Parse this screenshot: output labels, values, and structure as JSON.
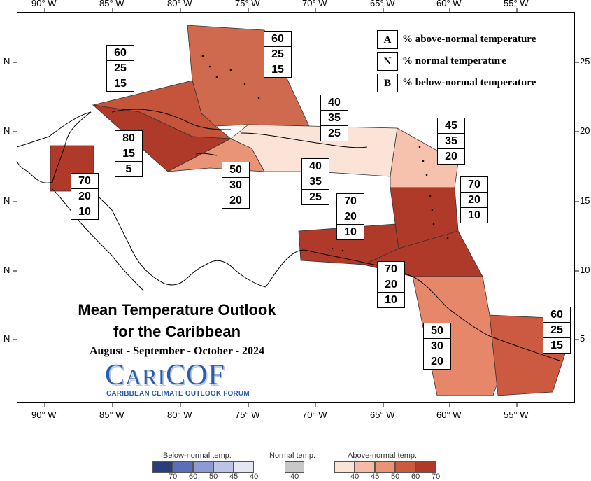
{
  "map": {
    "top_axis_labels": [
      "90° W",
      "85° W",
      "80° W",
      "75° W",
      "70° W",
      "65° W",
      "60° W",
      "55° W"
    ],
    "bottom_axis_labels": [
      "90° W",
      "85° W",
      "80° W",
      "75° W",
      "70° W",
      "65° W",
      "60° W",
      "55° W"
    ],
    "left_axis_labels": [
      "N",
      "N",
      "N",
      "N",
      "N"
    ],
    "right_axis_labels": [
      "25",
      "20",
      "15",
      "10",
      "5"
    ]
  },
  "legend": {
    "items": [
      {
        "letter": "A",
        "text": "% above-normal temperature"
      },
      {
        "letter": "N",
        "text": "% normal temperature"
      },
      {
        "letter": "B",
        "text": "% below-normal temperature"
      }
    ]
  },
  "regions": [
    {
      "id": "bahamas",
      "above": "60",
      "normal": "25",
      "below": "15",
      "color": "#d06a4e"
    },
    {
      "id": "cuba",
      "above": "60",
      "normal": "25",
      "below": "15",
      "color": "#c4553b"
    },
    {
      "id": "cayman-jamaica",
      "above": "80",
      "normal": "15",
      "below": "5",
      "color": "#b03a2a"
    },
    {
      "id": "jamaica-south",
      "above": "50",
      "normal": "30",
      "below": "20",
      "color": "#e99477"
    },
    {
      "id": "hispaniola",
      "above": "40",
      "normal": "35",
      "below": "25",
      "color": "#fbe3d8"
    },
    {
      "id": "turks-caicos",
      "above": "40",
      "normal": "35",
      "below": "25",
      "color": "#fbe3d8"
    },
    {
      "id": "leeward-islands",
      "above": "45",
      "normal": "35",
      "below": "20",
      "color": "#f6c2ad"
    },
    {
      "id": "belize",
      "above": "70",
      "normal": "20",
      "below": "10",
      "color": "#b03a2a"
    },
    {
      "id": "windward-islands",
      "above": "70",
      "normal": "20",
      "below": "10",
      "color": "#b03a2a"
    },
    {
      "id": "abc-islands",
      "above": "70",
      "normal": "20",
      "below": "10",
      "color": "#b03a2a"
    },
    {
      "id": "trinidad-barbados",
      "above": "70",
      "normal": "20",
      "below": "10",
      "color": "#b03a2a"
    },
    {
      "id": "guyana",
      "above": "50",
      "normal": "30",
      "below": "20",
      "color": "#e6876a"
    },
    {
      "id": "suriname-guiana",
      "above": "60",
      "normal": "25",
      "below": "15",
      "color": "#cc5a40"
    }
  ],
  "title": {
    "line1": "Mean Temperature Outlook",
    "line2": "for the Caribbean",
    "period": "August - September - October - 2024"
  },
  "logo": {
    "name_big1": "C",
    "name_small1": "ARI",
    "name_big2": "COF",
    "tagline": "CARIBBEAN CLIMATE OUTLOOK FORUM"
  },
  "colorbar": {
    "below_label": "Below-normal temp.",
    "normal_label": "Normal temp.",
    "above_label": "Above-normal temp.",
    "below_ticks": [
      "70",
      "60",
      "50",
      "45",
      "40"
    ],
    "normal_ticks": [
      "40"
    ],
    "above_ticks": [
      "40",
      "45",
      "50",
      "60",
      "70"
    ],
    "below_colors": [
      "#2c3e7a",
      "#5a6fb5",
      "#8e9bd0",
      "#bcc4e6",
      "#e3e7f4"
    ],
    "normal_colors": [
      "#c8c8c8"
    ],
    "above_colors": [
      "#fbe3d8",
      "#f4bba6",
      "#e99477",
      "#cc5a40",
      "#b03a2a"
    ]
  }
}
